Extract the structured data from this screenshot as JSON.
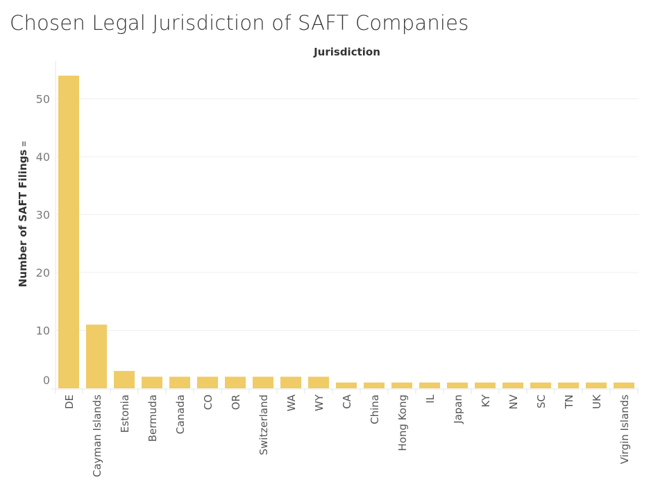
{
  "title": "Chosen Legal Jurisdiction of SAFT Companies",
  "chart_data": {
    "type": "bar",
    "title": "Chosen Legal Jurisdiction of SAFT Companies",
    "xlabel": "Jurisdiction",
    "ylabel": "Number of SAFT Filings",
    "ylim": [
      0,
      55
    ],
    "yticks": [
      0,
      10,
      20,
      30,
      40,
      50
    ],
    "grid": true,
    "color": "#EFCC66",
    "categories": [
      "DE",
      "Cayman Islands",
      "Estonia",
      "Bermuda",
      "Canada",
      "CO",
      "OR",
      "Switzerland",
      "WA",
      "WY",
      "CA",
      "China",
      "Hong Kong",
      "IL",
      "Japan",
      "KY",
      "NV",
      "SC",
      "TN",
      "UK",
      "Virgin Islands"
    ],
    "values": [
      54,
      11,
      3,
      2,
      2,
      2,
      2,
      2,
      2,
      2,
      1,
      1,
      1,
      1,
      1,
      1,
      1,
      1,
      1,
      1,
      1
    ]
  }
}
